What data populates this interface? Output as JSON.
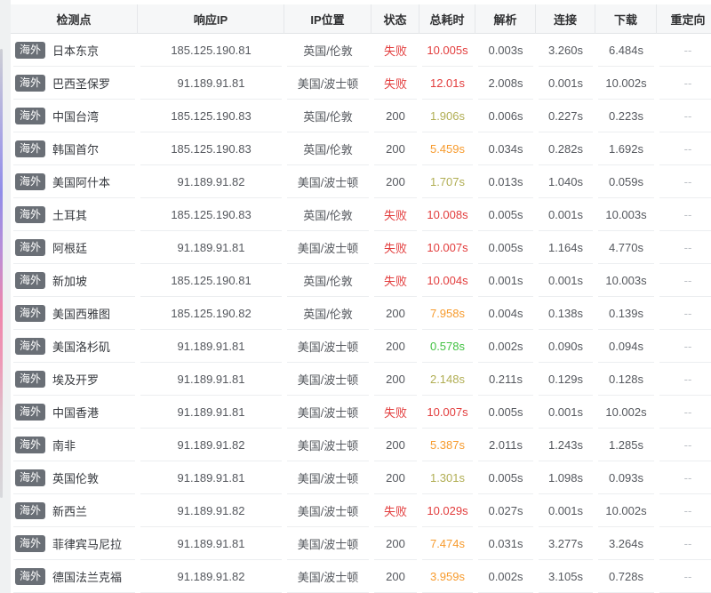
{
  "colors": {
    "fail_red": "#e23c3c",
    "slow_orange": "#f79b2e",
    "mid_olive": "#b1ae54",
    "fast_green": "#42c142",
    "badge_bg": "#6a6f76",
    "header_bg": "#f6f7f8"
  },
  "table": {
    "columns": [
      {
        "key": "node",
        "label": "检测点"
      },
      {
        "key": "ip",
        "label": "响应IP"
      },
      {
        "key": "loc",
        "label": "IP位置"
      },
      {
        "key": "status",
        "label": "状态"
      },
      {
        "key": "total",
        "label": "总耗时"
      },
      {
        "key": "dns",
        "label": "解析"
      },
      {
        "key": "conn",
        "label": "连接"
      },
      {
        "key": "down",
        "label": "下载"
      },
      {
        "key": "redirect",
        "label": "重定向"
      }
    ],
    "rows": [
      {
        "badge": "海外",
        "node": "日本东京",
        "ip": "185.125.190.81",
        "loc": "英国/伦敦",
        "status": "失败",
        "status_level": "fail",
        "total": "10.005s",
        "total_level": "red",
        "dns": "0.003s",
        "conn": "3.260s",
        "down": "6.484s",
        "redirect": "--"
      },
      {
        "badge": "海外",
        "node": "巴西圣保罗",
        "ip": "91.189.91.81",
        "loc": "美国/波士顿",
        "status": "失败",
        "status_level": "fail",
        "total": "12.01s",
        "total_level": "red",
        "dns": "2.008s",
        "conn": "0.001s",
        "down": "10.002s",
        "redirect": "--"
      },
      {
        "badge": "海外",
        "node": "中国台湾",
        "ip": "185.125.190.83",
        "loc": "英国/伦敦",
        "status": "200",
        "status_level": "ok",
        "total": "1.906s",
        "total_level": "olive",
        "dns": "0.006s",
        "conn": "0.227s",
        "down": "0.223s",
        "redirect": "--"
      },
      {
        "badge": "海外",
        "node": "韩国首尔",
        "ip": "185.125.190.83",
        "loc": "英国/伦敦",
        "status": "200",
        "status_level": "ok",
        "total": "5.459s",
        "total_level": "orange",
        "dns": "0.034s",
        "conn": "0.282s",
        "down": "1.692s",
        "redirect": "--"
      },
      {
        "badge": "海外",
        "node": "美国阿什本",
        "ip": "91.189.91.82",
        "loc": "美国/波士顿",
        "status": "200",
        "status_level": "ok",
        "total": "1.707s",
        "total_level": "olive",
        "dns": "0.013s",
        "conn": "1.040s",
        "down": "0.059s",
        "redirect": "--"
      },
      {
        "badge": "海外",
        "node": "土耳其",
        "ip": "185.125.190.83",
        "loc": "英国/伦敦",
        "status": "失败",
        "status_level": "fail",
        "total": "10.008s",
        "total_level": "red",
        "dns": "0.005s",
        "conn": "0.001s",
        "down": "10.003s",
        "redirect": "--"
      },
      {
        "badge": "海外",
        "node": "阿根廷",
        "ip": "91.189.91.81",
        "loc": "美国/波士顿",
        "status": "失败",
        "status_level": "fail",
        "total": "10.007s",
        "total_level": "red",
        "dns": "0.005s",
        "conn": "1.164s",
        "down": "4.770s",
        "redirect": "--"
      },
      {
        "badge": "海外",
        "node": "新加坡",
        "ip": "185.125.190.81",
        "loc": "英国/伦敦",
        "status": "失败",
        "status_level": "fail",
        "total": "10.004s",
        "total_level": "red",
        "dns": "0.001s",
        "conn": "0.001s",
        "down": "10.003s",
        "redirect": "--"
      },
      {
        "badge": "海外",
        "node": "美国西雅图",
        "ip": "185.125.190.82",
        "loc": "英国/伦敦",
        "status": "200",
        "status_level": "ok",
        "total": "7.958s",
        "total_level": "orange",
        "dns": "0.004s",
        "conn": "0.138s",
        "down": "0.139s",
        "redirect": "--"
      },
      {
        "badge": "海外",
        "node": "美国洛杉矶",
        "ip": "91.189.91.81",
        "loc": "美国/波士顿",
        "status": "200",
        "status_level": "ok",
        "total": "0.578s",
        "total_level": "green",
        "dns": "0.002s",
        "conn": "0.090s",
        "down": "0.094s",
        "redirect": "--"
      },
      {
        "badge": "海外",
        "node": "埃及开罗",
        "ip": "91.189.91.81",
        "loc": "美国/波士顿",
        "status": "200",
        "status_level": "ok",
        "total": "2.148s",
        "total_level": "olive",
        "dns": "0.211s",
        "conn": "0.129s",
        "down": "0.128s",
        "redirect": "--"
      },
      {
        "badge": "海外",
        "node": "中国香港",
        "ip": "91.189.91.81",
        "loc": "美国/波士顿",
        "status": "失败",
        "status_level": "fail",
        "total": "10.007s",
        "total_level": "red",
        "dns": "0.005s",
        "conn": "0.001s",
        "down": "10.002s",
        "redirect": "--"
      },
      {
        "badge": "海外",
        "node": "南非",
        "ip": "91.189.91.82",
        "loc": "美国/波士顿",
        "status": "200",
        "status_level": "ok",
        "total": "5.387s",
        "total_level": "orange",
        "dns": "2.011s",
        "conn": "1.243s",
        "down": "1.285s",
        "redirect": "--"
      },
      {
        "badge": "海外",
        "node": "英国伦敦",
        "ip": "91.189.91.81",
        "loc": "美国/波士顿",
        "status": "200",
        "status_level": "ok",
        "total": "1.301s",
        "total_level": "olive",
        "dns": "0.005s",
        "conn": "1.098s",
        "down": "0.093s",
        "redirect": "--"
      },
      {
        "badge": "海外",
        "node": "新西兰",
        "ip": "91.189.91.82",
        "loc": "美国/波士顿",
        "status": "失败",
        "status_level": "fail",
        "total": "10.029s",
        "total_level": "red",
        "dns": "0.027s",
        "conn": "0.001s",
        "down": "10.002s",
        "redirect": "--"
      },
      {
        "badge": "海外",
        "node": "菲律宾马尼拉",
        "ip": "91.189.91.81",
        "loc": "美国/波士顿",
        "status": "200",
        "status_level": "ok",
        "total": "7.474s",
        "total_level": "orange",
        "dns": "0.031s",
        "conn": "3.277s",
        "down": "3.264s",
        "redirect": "--"
      },
      {
        "badge": "海外",
        "node": "德国法兰克福",
        "ip": "91.189.91.82",
        "loc": "美国/波士顿",
        "status": "200",
        "status_level": "ok",
        "total": "3.959s",
        "total_level": "orange",
        "dns": "0.002s",
        "conn": "3.105s",
        "down": "0.728s",
        "redirect": "--"
      }
    ]
  }
}
